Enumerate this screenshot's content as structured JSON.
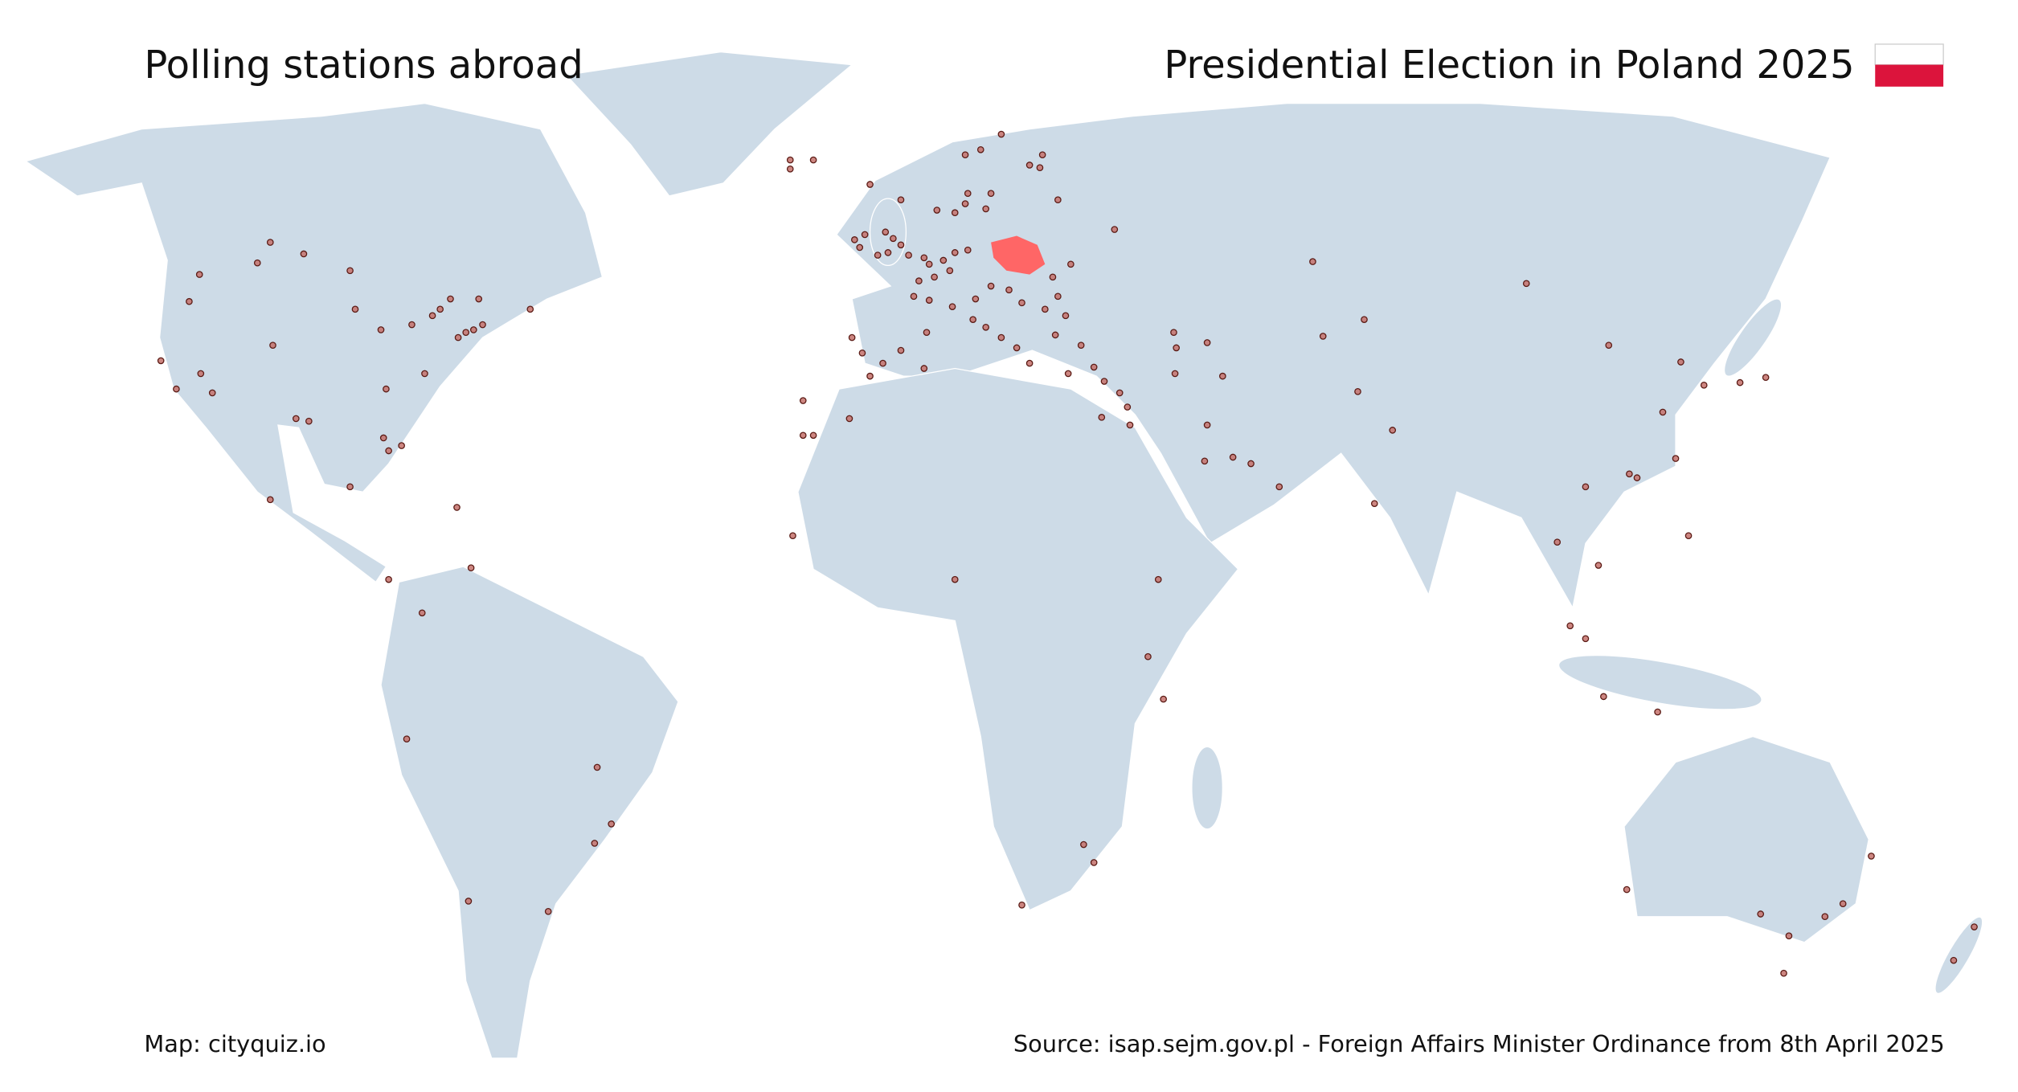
{
  "header": {
    "left_title": "Polling stations abroad",
    "right_title": "Presidential Election in Poland 2025"
  },
  "footer": {
    "credit": "Map: cityquiz.io",
    "source": "Source: isap.sejm.gov.pl - Foreign Affairs Minister Ordinance from 8th April 2025"
  }
}
